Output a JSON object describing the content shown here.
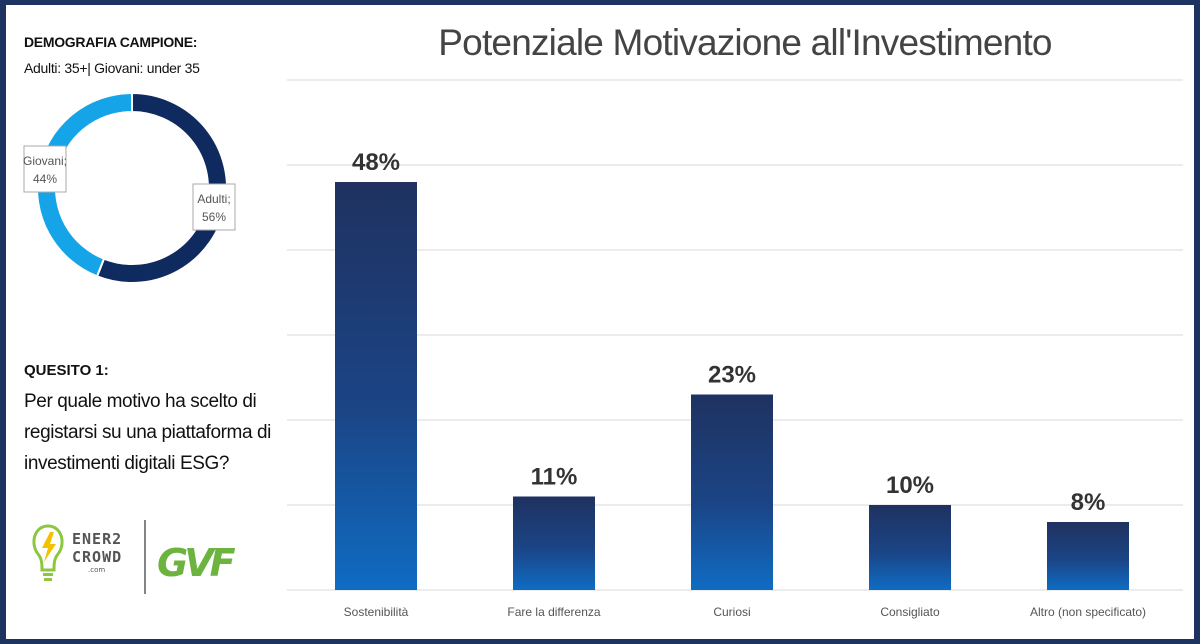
{
  "sidebar": {
    "sample_heading": "DEMOGRAFIA CAMPIONE:",
    "sample_detail": "Adulti: 35+| Giovani: under 35",
    "question_heading": "QUESITO 1:",
    "question_text": "Per quale motivo ha scelto di registarsi su una piattaforma di investimenti digitali ESG?"
  },
  "logos": {
    "ener2crowd_line1": "ENER2",
    "ener2crowd_line2": "CROWD",
    "ener2crowd_line3": ".com",
    "gvf_text": "GVF"
  },
  "colors": {
    "frame": "#1d3461",
    "bar_top": "#1f3260",
    "bar_bottom": "#0f6cc4",
    "donut_adulti": "#0f2a5e",
    "donut_giovani": "#16a4e8",
    "gridline": "#d9d9d9"
  },
  "chart_data": [
    {
      "type": "pie",
      "variant": "donut",
      "categories": [
        "Adulti",
        "Giovani"
      ],
      "values": [
        56,
        44
      ],
      "labels": [
        "Adulti;",
        "Giovani;"
      ],
      "value_labels": [
        "56%",
        "44%"
      ],
      "colors": [
        "#0f2a5e",
        "#16a4e8"
      ]
    },
    {
      "type": "bar",
      "title": "Potenziale Motivazione all'Investimento",
      "categories": [
        "Sostenibilità",
        "Fare la differenza",
        "Curiosi",
        "Consigliato",
        "Altro (non specificato)"
      ],
      "values": [
        48,
        11,
        23,
        10,
        8
      ],
      "value_labels": [
        "48%",
        "11%",
        "23%",
        "10%",
        "8%"
      ],
      "ylim": [
        0,
        60
      ],
      "grid": true
    }
  ]
}
